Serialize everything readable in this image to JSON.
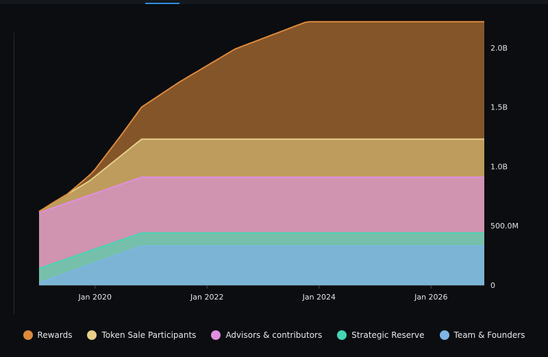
{
  "chart_data": {
    "type": "area",
    "stacked": true,
    "x_range": [
      2019.0,
      2026.95
    ],
    "ylim": [
      0,
      2.23
    ],
    "y_unit": "billion tokens",
    "y_ticks": [
      {
        "value": 0,
        "label": "0"
      },
      {
        "value": 0.5,
        "label": "500.0M"
      },
      {
        "value": 1.0,
        "label": "1.0B"
      },
      {
        "value": 1.5,
        "label": "1.5B"
      },
      {
        "value": 2.0,
        "label": "2.0B"
      }
    ],
    "x_ticks": [
      {
        "value": 2020.0,
        "label": "Jan 2020"
      },
      {
        "value": 2022.0,
        "label": "Jan 2022"
      },
      {
        "value": 2024.0,
        "label": "Jan 2024"
      },
      {
        "value": 2026.0,
        "label": "Jan 2026"
      }
    ],
    "legend_position": "bottom",
    "series": [
      {
        "name": "Team & Founders",
        "color": "#7eb4e6",
        "fill": "#7bb4d4",
        "x": [
          2019.0,
          2020.83,
          2026.95
        ],
        "y": [
          0.02,
          0.33,
          0.33
        ]
      },
      {
        "name": "Strategic Reserve",
        "color": "#45d4b4",
        "fill": "#76c0ab",
        "x": [
          2019.0,
          2020.83,
          2026.95
        ],
        "y": [
          0.12,
          0.11,
          0.11
        ]
      },
      {
        "name": "Advisors & contributors",
        "color": "#e08ee0",
        "fill": "#d094b0",
        "x": [
          2019.0,
          2020.83,
          2026.95
        ],
        "y": [
          0.47,
          0.47,
          0.47
        ]
      },
      {
        "name": "Token Sale Participants",
        "color": "#e6cf88",
        "fill": "#bd9c5d",
        "x": [
          2019.0,
          2019.3,
          2019.9,
          2020.83,
          2026.95
        ],
        "y": [
          0.01,
          0.05,
          0.12,
          0.32,
          0.32
        ]
      },
      {
        "name": "Rewards",
        "color": "#dd8a3c",
        "fill": "#85552a",
        "x": [
          2019.0,
          2019.5,
          2020.0,
          2020.5,
          2020.83,
          2021.5,
          2022.5,
          2023.78,
          2026.95
        ],
        "y": [
          0.0,
          0.0,
          0.06,
          0.18,
          0.27,
          0.48,
          0.76,
          0.99,
          0.99
        ]
      }
    ]
  }
}
